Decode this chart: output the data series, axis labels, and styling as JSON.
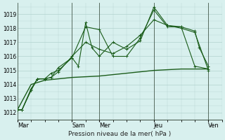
{
  "background_color": "#d8f0ee",
  "grid_color": "#a8ccc8",
  "line_color": "#1a5c1a",
  "title": "Pression niveau de la mer( hPa )",
  "ylim": [
    1011.5,
    1019.8
  ],
  "yticks": [
    1012,
    1013,
    1014,
    1015,
    1016,
    1017,
    1018,
    1019
  ],
  "day_labels": [
    "Mar",
    "Sam",
    "Mer",
    "Jeu",
    "Ven"
  ],
  "day_positions": [
    0,
    60,
    90,
    150,
    210
  ],
  "xlim": [
    0,
    225
  ],
  "series1_x": [
    0,
    5,
    15,
    22,
    30,
    37,
    45,
    60,
    75,
    90,
    105,
    120,
    135,
    150,
    165,
    180,
    195,
    200,
    210
  ],
  "series1_y": [
    1012.2,
    1012.2,
    1013.6,
    1014.4,
    1014.4,
    1014.5,
    1015.2,
    1015.9,
    1018.1,
    1017.9,
    1016.0,
    1016.0,
    1017.3,
    1019.3,
    1018.1,
    1018.1,
    1017.8,
    1016.6,
    1015.3
  ],
  "series2_x": [
    0,
    5,
    15,
    22,
    30,
    37,
    45,
    60,
    67,
    75,
    82,
    90,
    105,
    120,
    135,
    150,
    165,
    180,
    195,
    210
  ],
  "series2_y": [
    1012.2,
    1012.2,
    1013.6,
    1014.4,
    1014.4,
    1014.8,
    1015.0,
    1015.9,
    1015.3,
    1018.4,
    1016.6,
    1016.0,
    1017.0,
    1016.5,
    1017.1,
    1019.5,
    1018.2,
    1018.0,
    1017.7,
    1015.0
  ],
  "series3_x": [
    0,
    5,
    15,
    22,
    30,
    37,
    45,
    60,
    75,
    90,
    105,
    120,
    135,
    150,
    165,
    180,
    195,
    210
  ],
  "series3_y": [
    1012.2,
    1012.2,
    1013.7,
    1014.4,
    1014.4,
    1014.5,
    1014.9,
    1016.0,
    1017.0,
    1016.5,
    1016.2,
    1016.7,
    1017.5,
    1018.6,
    1018.2,
    1018.1,
    1015.3,
    1015.1
  ],
  "series4_x": [
    0,
    15,
    30,
    45,
    60,
    75,
    90,
    105,
    120,
    135,
    150,
    165,
    180,
    195,
    210
  ],
  "series4_y": [
    1012.2,
    1014.0,
    1014.3,
    1014.4,
    1014.5,
    1014.55,
    1014.6,
    1014.7,
    1014.8,
    1014.9,
    1015.0,
    1015.05,
    1015.1,
    1015.1,
    1015.1
  ]
}
